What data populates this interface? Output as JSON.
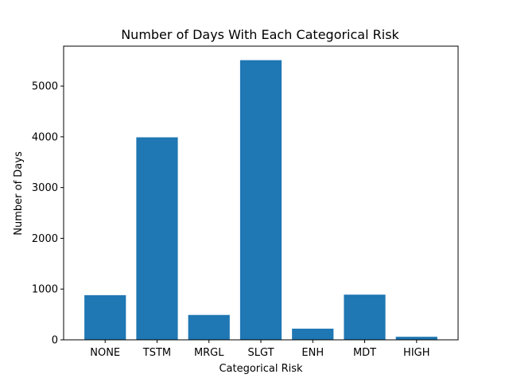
{
  "chart_data": {
    "type": "bar",
    "title": "Number of Days With Each Categorical Risk",
    "xlabel": "Categorical Risk",
    "ylabel": "Number of Days",
    "categories": [
      "NONE",
      "TSTM",
      "MRGL",
      "SLGT",
      "ENH",
      "MDT",
      "HIGH"
    ],
    "values": [
      880,
      3990,
      490,
      5510,
      220,
      890,
      60
    ],
    "ylim": [
      0,
      5786
    ],
    "yticks": [
      0,
      1000,
      2000,
      3000,
      4000,
      5000
    ],
    "ytick_labels": [
      "0",
      "1000",
      "2000",
      "3000",
      "4000",
      "5000"
    ],
    "bar_color": "#1f77b4",
    "grid": false,
    "legend": false
  }
}
